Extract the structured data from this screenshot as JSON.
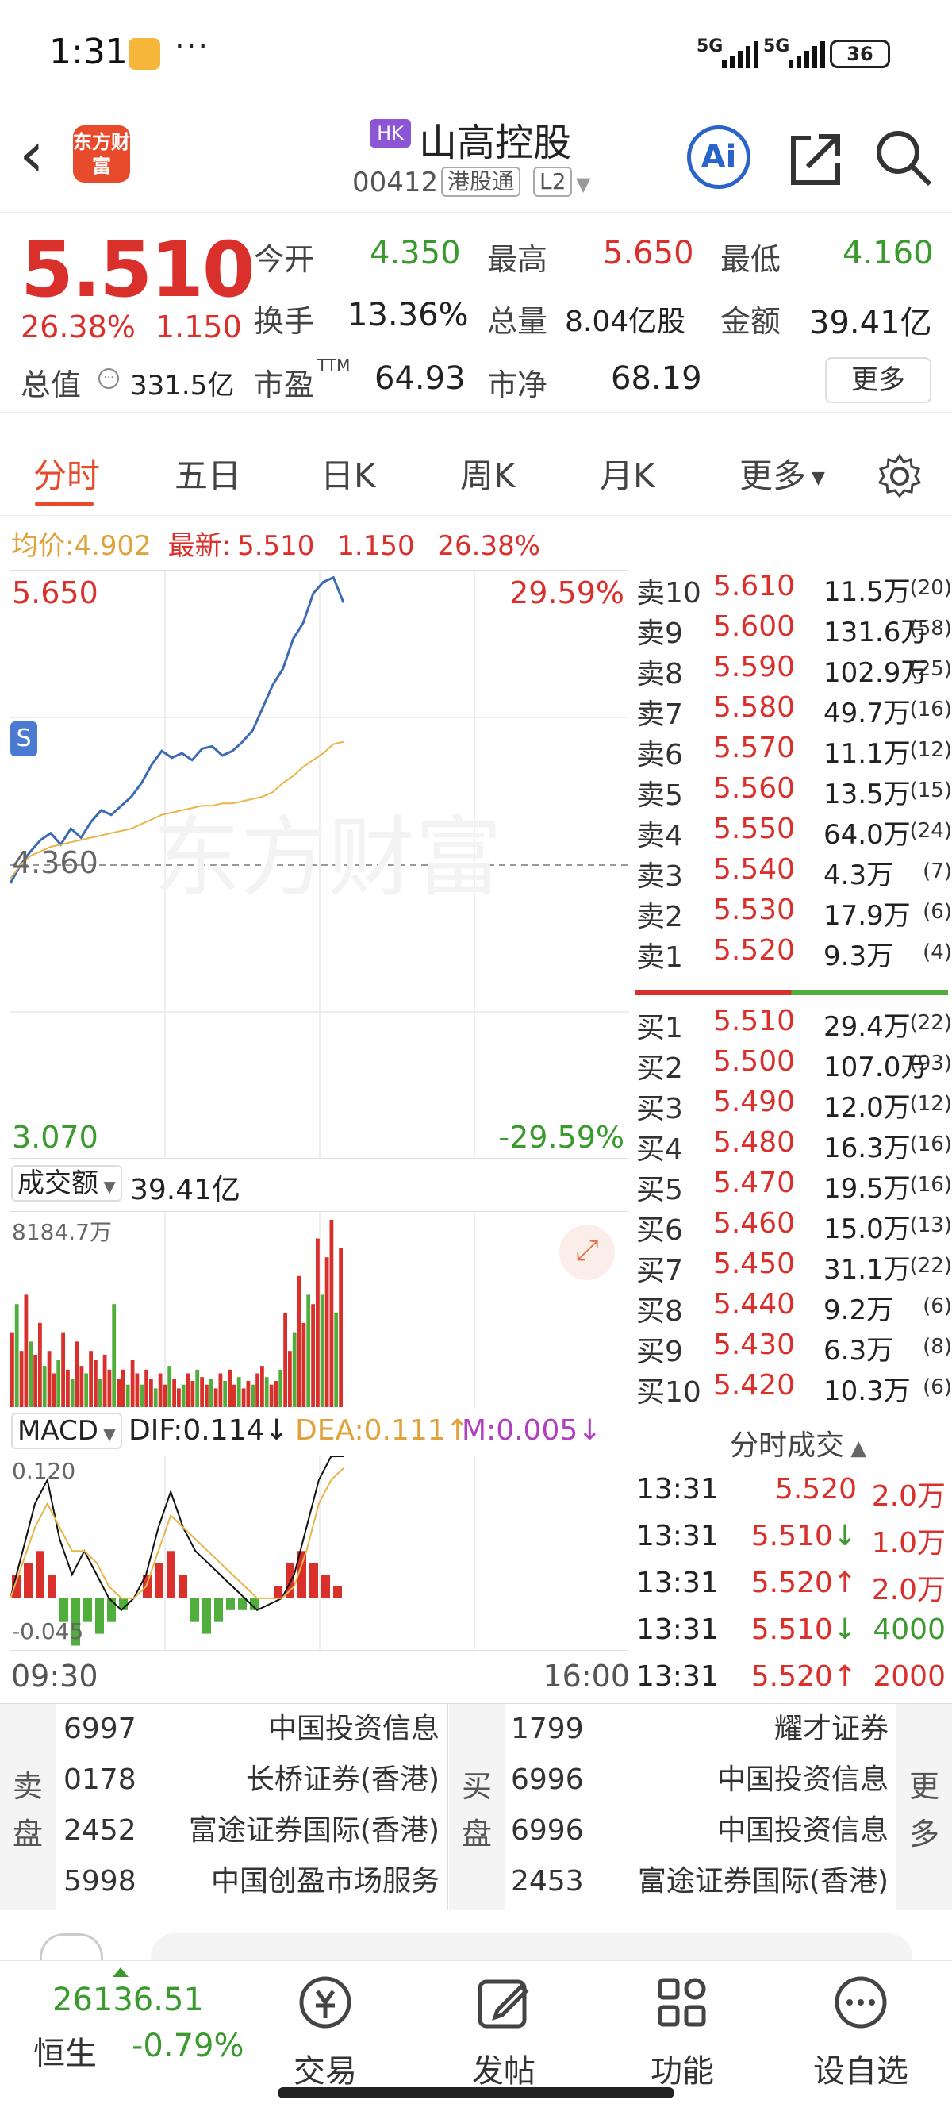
{
  "status_bar": {
    "time": "1:31",
    "more": "···",
    "sig1": "5G",
    "sig2": "5G",
    "battery": "36"
  },
  "header": {
    "logo_text": "东方财富",
    "market_tag": "HK",
    "stock_name": "山高控股",
    "code": "00412",
    "channel": "港股通",
    "level": "L2",
    "ai": "Ai"
  },
  "quote": {
    "price": "5.510",
    "change_pct": "26.38%",
    "change": "1.150",
    "open_label": "今开",
    "open": "4.350",
    "high_label": "最高",
    "high": "5.650",
    "low_label": "最低",
    "low": "4.160",
    "turnover_label": "换手",
    "turnover": "13.36%",
    "volume_label": "总量",
    "volume": "8.04亿股",
    "amount_label": "金额",
    "amount": "39.41亿",
    "mktcap_label": "总值",
    "mktcap": "331.5亿",
    "pe_label": "市盈",
    "pe_sup": "TTM",
    "pe": "64.93",
    "pb_label": "市净",
    "pb": "68.19",
    "more": "更多"
  },
  "tabs": [
    "分时",
    "五日",
    "日K",
    "周K",
    "月K",
    "更多"
  ],
  "summary": {
    "avg_label": "均价:",
    "avg": "4.902",
    "latest_label": "最新:",
    "latest": "5.510",
    "chg": "1.150",
    "pct": "26.38%"
  },
  "intraday": {
    "y_top": "5.650",
    "y_mid": "4.360",
    "y_bot": "3.070",
    "pct_top": "29.59%",
    "pct_bot": "-29.59%",
    "marker": "S",
    "watermark": "东方财富"
  },
  "order_book": {
    "asks": [
      {
        "label": "卖10",
        "price": "5.610",
        "vol": "11.5万",
        "count": "(20)"
      },
      {
        "label": "卖9",
        "price": "5.600",
        "vol": "131.6万",
        "count": "(58)"
      },
      {
        "label": "卖8",
        "price": "5.590",
        "vol": "102.9万",
        "count": "(25)"
      },
      {
        "label": "卖7",
        "price": "5.580",
        "vol": "49.7万",
        "count": "(16)"
      },
      {
        "label": "卖6",
        "price": "5.570",
        "vol": "11.1万",
        "count": "(12)"
      },
      {
        "label": "卖5",
        "price": "5.560",
        "vol": "13.5万",
        "count": "(15)"
      },
      {
        "label": "卖4",
        "price": "5.550",
        "vol": "64.0万",
        "count": "(24)"
      },
      {
        "label": "卖3",
        "price": "5.540",
        "vol": "4.3万",
        "count": "(7)"
      },
      {
        "label": "卖2",
        "price": "5.530",
        "vol": "17.9万",
        "count": "(6)"
      },
      {
        "label": "卖1",
        "price": "5.520",
        "vol": "9.3万",
        "count": "(4)"
      }
    ],
    "bids": [
      {
        "label": "买1",
        "price": "5.510",
        "vol": "29.4万",
        "count": "(22)"
      },
      {
        "label": "买2",
        "price": "5.500",
        "vol": "107.0万",
        "count": "(93)"
      },
      {
        "label": "买3",
        "price": "5.490",
        "vol": "12.0万",
        "count": "(12)"
      },
      {
        "label": "买4",
        "price": "5.480",
        "vol": "16.3万",
        "count": "(16)"
      },
      {
        "label": "买5",
        "price": "5.470",
        "vol": "19.5万",
        "count": "(16)"
      },
      {
        "label": "买6",
        "price": "5.460",
        "vol": "15.0万",
        "count": "(13)"
      },
      {
        "label": "买7",
        "price": "5.450",
        "vol": "31.1万",
        "count": "(22)"
      },
      {
        "label": "买8",
        "price": "5.440",
        "vol": "9.2万",
        "count": "(6)"
      },
      {
        "label": "买9",
        "price": "5.430",
        "vol": "6.3万",
        "count": "(8)"
      },
      {
        "label": "买10",
        "price": "5.420",
        "vol": "10.3万",
        "count": "(6)"
      }
    ]
  },
  "ticks": {
    "title": "分时成交",
    "rows": [
      {
        "time": "13:31",
        "price": "5.520",
        "dir": "",
        "vol": "2.0万",
        "color": "#d9302c"
      },
      {
        "time": "13:31",
        "price": "5.510",
        "dir": "↓",
        "vol": "1.0万",
        "color": "#d9302c"
      },
      {
        "time": "13:31",
        "price": "5.520",
        "dir": "↑",
        "vol": "2.0万",
        "color": "#d9302c"
      },
      {
        "time": "13:31",
        "price": "5.510",
        "dir": "↓",
        "vol": "4000",
        "color": "#3a9a2e"
      },
      {
        "time": "13:31",
        "price": "5.520",
        "dir": "↑",
        "vol": "2000",
        "color": "#d9302c"
      }
    ]
  },
  "volume": {
    "label": "成交额",
    "value": "39.41亿",
    "max": "8184.7万"
  },
  "macd": {
    "label": "MACD",
    "dif": "DIF:0.114↓",
    "dea": "DEA:0.111↑",
    "m": "M:0.005↓",
    "top": "0.120",
    "bot": "-0.045"
  },
  "time_axis": {
    "start": "09:30",
    "end": "16:00"
  },
  "brokers": {
    "sell_label": "卖盘",
    "buy_label": "买盘",
    "more_label": "更多",
    "sell": [
      {
        "id": "6997",
        "name": "中国投资信息"
      },
      {
        "id": "0178",
        "name": "长桥证券(香港)"
      },
      {
        "id": "2452",
        "name": "富途证券国际(香港)"
      },
      {
        "id": "5998",
        "name": "中国创盈市场服务"
      }
    ],
    "buy": [
      {
        "id": "1799",
        "name": "耀才证券"
      },
      {
        "id": "6996",
        "name": "中国投资信息"
      },
      {
        "id": "6996",
        "name": "中国投资信息"
      },
      {
        "id": "2453",
        "name": "富途证券国际(香港)"
      }
    ]
  },
  "bottom": {
    "index_value": "26136.51",
    "index_name": "恒生",
    "index_chg": "-0.79%",
    "trade": "交易",
    "post": "发帖",
    "func": "功能",
    "watch": "设自选"
  },
  "chart_data": [
    {
      "type": "line",
      "series": [
        {
          "values": [
            4.28,
            4.36,
            4.42,
            4.47,
            4.5,
            4.45,
            4.52,
            4.48,
            4.55,
            4.6,
            4.58,
            4.62,
            4.66,
            4.72,
            4.8,
            4.86,
            4.83,
            4.85,
            4.82,
            4.87,
            4.88,
            4.84,
            4.86,
            4.9,
            4.95,
            5.05,
            5.15,
            5.22,
            5.35,
            5.42,
            5.55,
            5.6,
            5.62,
            5.51
          ],
          "color": "#3d6bb3"
        },
        {
          "values": [
            4.3,
            4.36,
            4.4,
            4.42,
            4.44,
            4.45,
            4.46,
            4.47,
            4.48,
            4.49,
            4.5,
            4.51,
            4.52,
            4.54,
            4.56,
            4.58,
            4.59,
            4.6,
            4.61,
            4.62,
            4.62,
            4.63,
            4.63,
            4.64,
            4.65,
            4.66,
            4.68,
            4.72,
            4.75,
            4.79,
            4.82,
            4.85,
            4.89,
            4.9
          ],
          "color": "#e8b54a"
        }
      ],
      "ylim": [
        3.07,
        5.65
      ]
    },
    {
      "type": "bar",
      "values": [
        40,
        55,
        30,
        60,
        35,
        28,
        45,
        22,
        30,
        18,
        25,
        40,
        20,
        15,
        35,
        22,
        18,
        30,
        25,
        15,
        28,
        20,
        55,
        15,
        20,
        12,
        25,
        18,
        12,
        20,
        15,
        10,
        18,
        12,
        22,
        15,
        10,
        12,
        18,
        14,
        20,
        16,
        12,
        15,
        10,
        18,
        14,
        20,
        12,
        16,
        10,
        14,
        12,
        18,
        22,
        16,
        12,
        14,
        20,
        50,
        30,
        40,
        70,
        45,
        60,
        55,
        90,
        60,
        80,
        100,
        50,
        85
      ],
      "colors": [
        "r",
        "g"
      ],
      "ylim": [
        0,
        8184.7
      ]
    },
    {
      "type": "line",
      "series": [
        {
          "values": [
            0.0,
            0.04,
            0.08,
            0.1,
            0.05,
            0.02,
            0.04,
            0.02,
            0.0,
            -0.01,
            0.0,
            0.02,
            0.06,
            0.09,
            0.06,
            0.04,
            0.03,
            0.02,
            0.01,
            0.0,
            -0.01,
            -0.005,
            0.0,
            0.02,
            0.06,
            0.1,
            0.12,
            0.12
          ],
          "color": "#111"
        },
        {
          "values": [
            0.0,
            0.03,
            0.06,
            0.08,
            0.06,
            0.04,
            0.04,
            0.03,
            0.01,
            0.0,
            0.0,
            0.01,
            0.04,
            0.07,
            0.06,
            0.05,
            0.04,
            0.03,
            0.02,
            0.01,
            0.0,
            0.0,
            0.0,
            0.01,
            0.04,
            0.08,
            0.1,
            0.11
          ],
          "color": "#e8b54a"
        }
      ],
      "hist": [
        0.02,
        0.03,
        0.04,
        0.02,
        -0.02,
        -0.04,
        -0.02,
        -0.03,
        -0.02,
        -0.01,
        0.0,
        0.02,
        0.03,
        0.04,
        0.02,
        -0.02,
        -0.03,
        -0.02,
        -0.01,
        -0.01,
        -0.01,
        0.0,
        0.01,
        0.03,
        0.04,
        0.03,
        0.02,
        0.01
      ],
      "ylim": [
        -0.045,
        0.12
      ]
    }
  ]
}
